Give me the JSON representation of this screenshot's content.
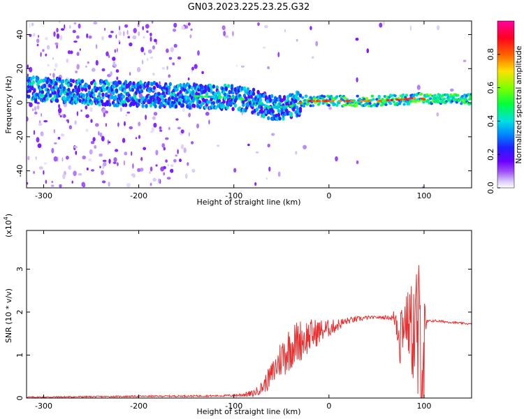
{
  "title": "GN03.2023.225.23.25.G32",
  "chart_data": [
    {
      "type": "heatmap",
      "xlabel": "Height of straight line (km)",
      "ylabel": "Frequency (Hz)",
      "xlim": [
        -318,
        150
      ],
      "ylim": [
        -50,
        48
      ],
      "xticks": [
        -300,
        -200,
        -100,
        0,
        100
      ],
      "yticks": [
        -40,
        -20,
        0,
        20,
        40
      ],
      "colorbar": {
        "label": "Normalized spectral amplitude",
        "range": [
          0,
          1
        ],
        "ticks": [
          "0.0",
          "0.2",
          "0.4",
          "0.6",
          "0.8"
        ],
        "tick_values": [
          0,
          0.2,
          0.4,
          0.6,
          0.8
        ],
        "colors": [
          "#ffffff",
          "#b07cf0",
          "#7a00ff",
          "#2a00ff",
          "#0060ff",
          "#00d8ff",
          "#00ff60",
          "#a0ff00",
          "#ffd800",
          "#ff4000",
          "#ff0060",
          "#ff00a0"
        ]
      },
      "band_centerline": {
        "x": [
          -318,
          -280,
          -250,
          -200,
          -150,
          -100,
          -80,
          -60,
          -40,
          -25,
          0,
          50,
          80,
          95,
          100,
          150
        ],
        "y": [
          8,
          7,
          6,
          5,
          4,
          3,
          1,
          -3,
          -2,
          1,
          1,
          1,
          2,
          3,
          2,
          2
        ]
      },
      "hot_segment_x": [
        -30,
        100
      ]
    },
    {
      "type": "line",
      "xlabel": "Height of straight line (km)",
      "ylabel": "SNR (10 * v/v)",
      "yscale_label": "(x10",
      "yscale_exp": "4",
      "yscale_close": ")",
      "xlim": [
        -318,
        150
      ],
      "ylim": [
        0,
        3.9
      ],
      "xticks": [
        -300,
        -200,
        -100,
        0,
        100
      ],
      "yticks": [
        0,
        1,
        2,
        3
      ],
      "color": "#e83030",
      "envelope": {
        "x": [
          -318,
          -200,
          -120,
          -100,
          -80,
          -70,
          -60,
          -50,
          -40,
          -30,
          -20,
          -10,
          0,
          20,
          40,
          60,
          70,
          75,
          80,
          90,
          95,
          100,
          103,
          110,
          130,
          150
        ],
        "y": [
          0.02,
          0.04,
          0.05,
          0.06,
          0.1,
          0.25,
          0.55,
          0.95,
          1.2,
          1.35,
          1.45,
          1.55,
          1.62,
          1.8,
          1.87,
          1.88,
          1.85,
          1.6,
          1.85,
          1.5,
          1.2,
          1.1,
          1.78,
          1.8,
          1.76,
          1.72
        ]
      },
      "noise_amp": {
        "x": [
          -318,
          -110,
          -90,
          -75,
          -60,
          -45,
          -30,
          -15,
          0,
          20,
          50,
          65,
          70,
          75,
          80,
          88,
          92,
          97,
          100,
          102,
          105,
          150
        ],
        "y": [
          0.015,
          0.02,
          0.05,
          0.1,
          0.3,
          0.55,
          0.5,
          0.35,
          0.2,
          0.08,
          0.03,
          0.05,
          0.3,
          1.0,
          0.5,
          1.2,
          2.0,
          2.2,
          1.8,
          0.1,
          0.03,
          0.02
        ]
      }
    }
  ]
}
